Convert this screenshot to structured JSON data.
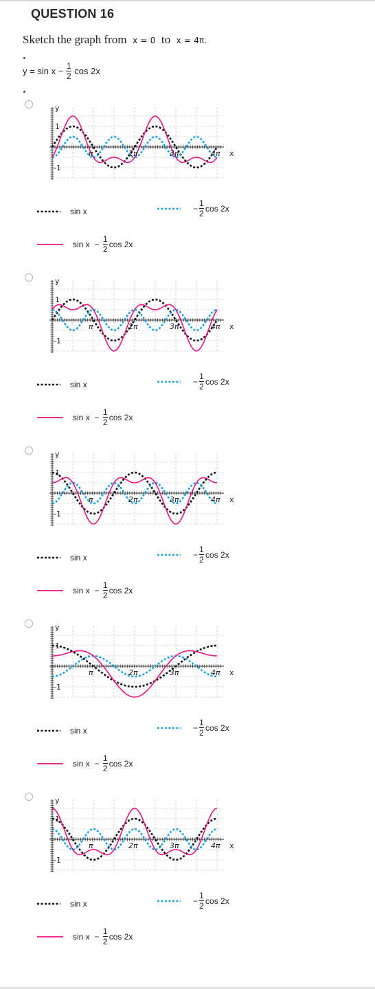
{
  "question": {
    "title": "QUESTION 16",
    "prompt_text": "Sketch the graph from",
    "x_label": "x",
    "equals": "=",
    "from": "0",
    "to_word": "to",
    "end": "4π.",
    "equation": {
      "lhs": "y",
      "equals": "=",
      "term1": "sin x",
      "minus": "−",
      "frac_num": "1",
      "frac_den": "2",
      "term2": "cos 2x"
    }
  },
  "graph_labels": {
    "y": "y",
    "one": "1",
    "neg_one": "-1",
    "pi": "π",
    "two_pi": "2π",
    "three_pi": "3π",
    "four_pi": "4π",
    "x": "x"
  },
  "legend": {
    "sin": "sin x",
    "half_cos_minus": "−",
    "half_cos_num": "1",
    "half_cos_den": "2",
    "half_cos": "cos 2x",
    "combo_sin": "sin x",
    "combo_minus": "−",
    "combo_num": "1",
    "combo_den": "2",
    "combo_cos": "cos 2x"
  },
  "colors": {
    "black_series": "#111111",
    "blue_series": "#1aa3e0",
    "pink_series": "#e6177f"
  },
  "chart_data": [
    {
      "type": "line",
      "xlim": [
        0,
        12.566
      ],
      "ylim": [
        -1.6,
        1.6
      ],
      "x_ticks": [
        "π",
        "2π",
        "3π",
        "4π"
      ],
      "y_ticks": [
        "1",
        "-1"
      ],
      "series": [
        {
          "name": "sin x",
          "expr": "sin x",
          "style": "dotted",
          "color": "#111111"
        },
        {
          "name": "− 1/2 cos 2x",
          "expr": "-0.5*cos(2x)",
          "style": "dotted",
          "color": "#1aa3e0"
        },
        {
          "name": "sin x − 1/2 cos 2x",
          "expr": "sin x - 0.5*cos(2x)",
          "style": "solid",
          "color": "#e6177f"
        }
      ]
    },
    {
      "type": "line",
      "xlim": [
        0,
        12.566
      ],
      "ylim": [
        -1.6,
        1.6
      ],
      "x_ticks": [
        "π",
        "2π",
        "3π",
        "4π"
      ],
      "y_ticks": [
        "1",
        "-1"
      ],
      "series": [
        {
          "name": "sin x",
          "expr": "sin x",
          "style": "dotted",
          "color": "#111111"
        },
        {
          "name": "− 1/2 cos 2x",
          "expr": "0.5*cos(2x)",
          "style": "dotted",
          "color": "#1aa3e0"
        },
        {
          "name": "sin x − 1/2 cos 2x",
          "expr": "sin x + 0.5*cos(2x)",
          "style": "solid",
          "color": "#e6177f"
        }
      ]
    },
    {
      "type": "line",
      "xlim": [
        0,
        12.566
      ],
      "ylim": [
        -1.6,
        1.6
      ],
      "x_ticks": [
        "π",
        "2π",
        "3π",
        "4π"
      ],
      "y_ticks": [
        "1",
        "-1"
      ],
      "series": [
        {
          "name": "sin x",
          "expr": "cos x",
          "style": "dotted",
          "color": "#111111"
        },
        {
          "name": "− 1/2 cos 2x",
          "expr": "-0.5*cos(2x)",
          "style": "dotted",
          "color": "#1aa3e0"
        },
        {
          "name": "sin x − 1/2 cos 2x",
          "expr": "cos x - 0.5*cos(2x)",
          "style": "solid",
          "color": "#e6177f"
        }
      ]
    },
    {
      "type": "line",
      "xlim": [
        0,
        12.566
      ],
      "ylim": [
        -1.6,
        1.6
      ],
      "x_ticks": [
        "π",
        "2π",
        "3π",
        "4π"
      ],
      "y_ticks": [
        "1",
        "-1"
      ],
      "series": [
        {
          "name": "sin x",
          "expr": "cos(x/2)",
          "style": "dotted",
          "color": "#111111"
        },
        {
          "name": "− 1/2 cos 2x",
          "expr": "-0.5*cos(x)",
          "style": "dotted",
          "color": "#1aa3e0"
        },
        {
          "name": "sin x − 1/2 cos 2x",
          "expr": "cos(x/2) - 0.5*cos(x)",
          "style": "solid",
          "color": "#e6177f"
        }
      ]
    },
    {
      "type": "line",
      "xlim": [
        0,
        12.566
      ],
      "ylim": [
        -1.6,
        1.6
      ],
      "x_ticks": [
        "π",
        "2π",
        "3π",
        "4π"
      ],
      "y_ticks": [
        "1",
        "-1"
      ],
      "series": [
        {
          "name": "sin x",
          "expr": "cos x",
          "style": "dotted",
          "color": "#111111"
        },
        {
          "name": "− 1/2 cos 2x",
          "expr": "0.5*cos(2x)",
          "style": "dotted",
          "color": "#1aa3e0"
        },
        {
          "name": "sin x − 1/2 cos 2x",
          "expr": "cos x + 0.5*cos(2x)",
          "style": "solid",
          "color": "#e6177f"
        }
      ]
    }
  ]
}
